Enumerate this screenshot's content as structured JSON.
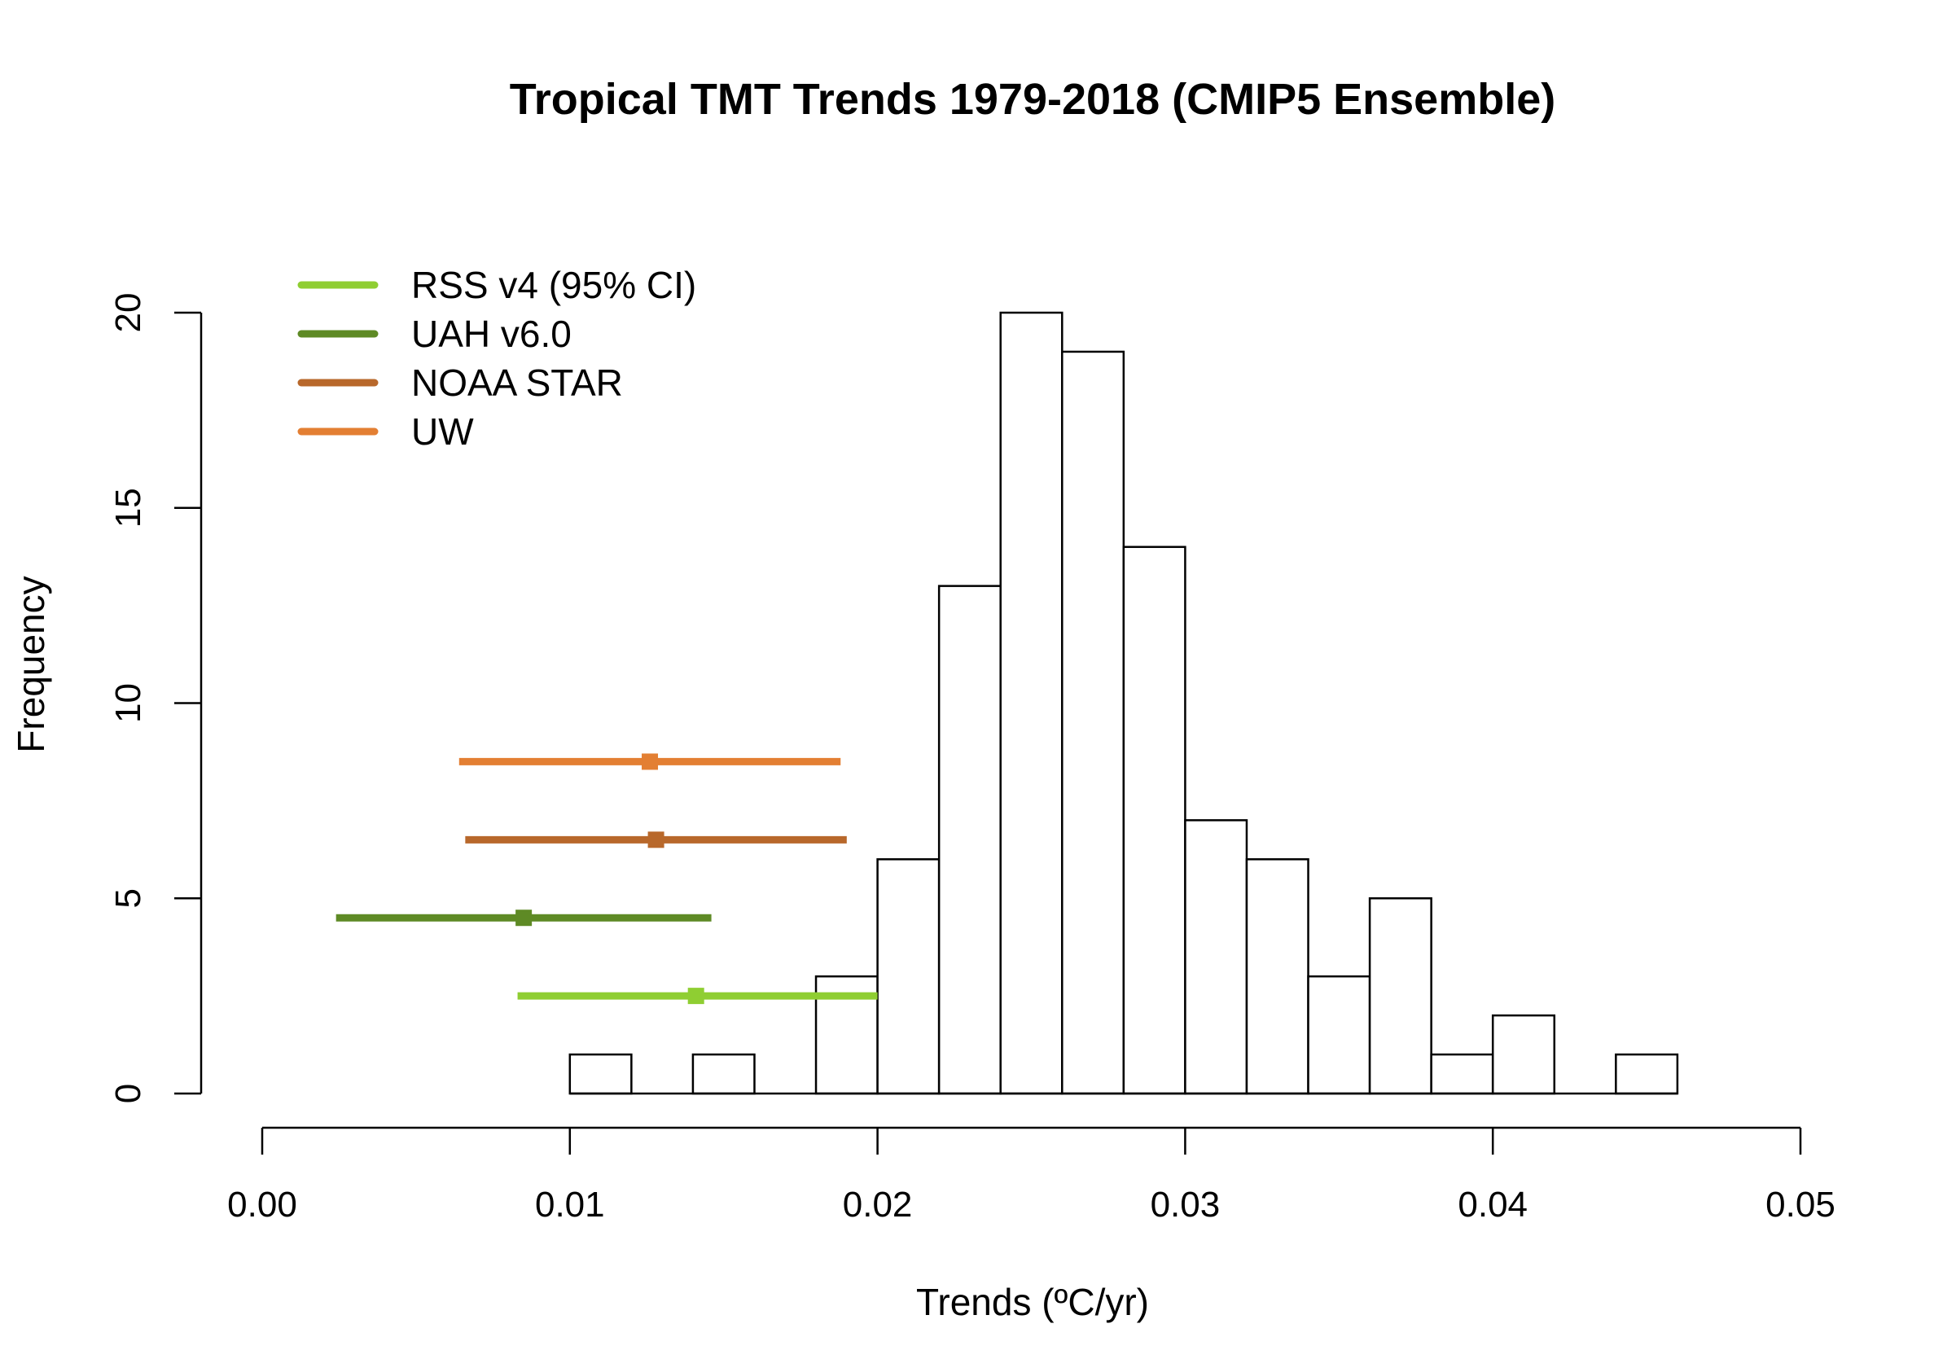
{
  "chart_data": {
    "type": "bar",
    "title": "Tropical TMT Trends 1979-2018 (CMIP5 Ensemble)",
    "xlabel": "Trends (ºC/yr)",
    "ylabel": "Frequency",
    "xlim": [
      0,
      0.05
    ],
    "ylim": [
      0,
      20
    ],
    "xticks": [
      "0.00",
      "0.01",
      "0.02",
      "0.03",
      "0.04",
      "0.05"
    ],
    "xtick_values": [
      0,
      0.01,
      0.02,
      0.03,
      0.04,
      0.05
    ],
    "yticks": [
      "0",
      "5",
      "10",
      "15",
      "20"
    ],
    "ytick_values": [
      0,
      5,
      10,
      15,
      20
    ],
    "histogram": {
      "bin_edges": [
        0.01,
        0.012,
        0.014,
        0.016,
        0.018,
        0.02,
        0.022,
        0.024,
        0.026,
        0.028,
        0.03,
        0.032,
        0.034,
        0.036,
        0.038,
        0.04,
        0.042,
        0.044,
        0.046
      ],
      "counts": [
        1,
        0,
        1,
        0,
        3,
        6,
        13,
        20,
        19,
        14,
        7,
        6,
        3,
        5,
        1,
        2,
        0,
        1
      ]
    },
    "series": [
      {
        "name": "RSS v4 (95% CI)",
        "color": "#8fce32",
        "y": 2.5,
        "center": 0.0141,
        "low": 0.0083,
        "high": 0.02
      },
      {
        "name": "UAH v6.0",
        "color": "#5e8a25",
        "y": 4.5,
        "center": 0.0085,
        "low": 0.0024,
        "high": 0.0146
      },
      {
        "name": "NOAA STAR",
        "color": "#b8682b",
        "y": 6.5,
        "center": 0.0128,
        "low": 0.0066,
        "high": 0.019
      },
      {
        "name": "UW",
        "color": "#e37f33",
        "y": 8.5,
        "center": 0.0126,
        "low": 0.0064,
        "high": 0.0188
      }
    ],
    "legend_position": "top-left",
    "grid": false
  }
}
